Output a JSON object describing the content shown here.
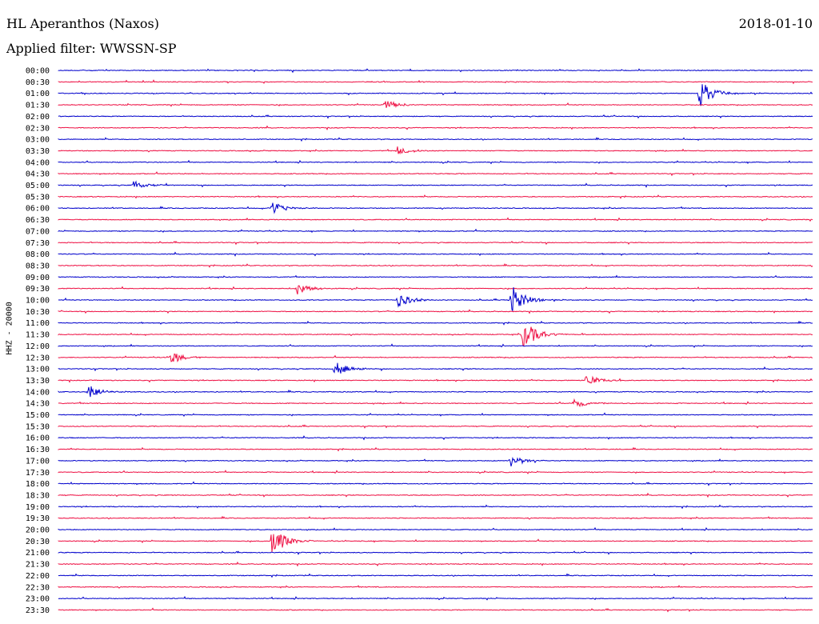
{
  "header": {
    "station": "HL Aperanthos (Naxos)",
    "date": "2018-01-10",
    "filter": "Applied filter: WWSSN-SP",
    "channel": "HHZ - 20000"
  },
  "chart_data": {
    "type": "line",
    "title": "HL Aperanthos (Naxos)",
    "subtitle": "Applied filter: WWSSN-SP",
    "ylabel": "HHZ - 20000",
    "xlabel": "",
    "row_labels": [
      "00:00",
      "00:30",
      "01:00",
      "01:30",
      "02:00",
      "02:30",
      "03:00",
      "03:30",
      "04:00",
      "04:30",
      "05:00",
      "05:30",
      "06:00",
      "06:30",
      "07:00",
      "07:30",
      "08:00",
      "08:30",
      "09:00",
      "09:30",
      "10:00",
      "10:30",
      "11:00",
      "11:30",
      "12:00",
      "12:30",
      "13:00",
      "13:30",
      "14:00",
      "14:30",
      "15:00",
      "15:30",
      "16:00",
      "16:30",
      "17:00",
      "17:30",
      "18:00",
      "18:30",
      "19:00",
      "19:30",
      "20:00",
      "20:30",
      "21:00",
      "21:30",
      "22:00",
      "22:30",
      "23:00",
      "23:30"
    ],
    "colors": [
      "#0000cc",
      "#ee1144"
    ],
    "legend": "none",
    "grid": false,
    "events": [
      {
        "row": "01:00",
        "minute": 25.5,
        "amplitude": 1.0
      },
      {
        "row": "01:30",
        "minute": 13.0,
        "amplitude": 0.3
      },
      {
        "row": "03:30",
        "minute": 13.5,
        "amplitude": 0.3
      },
      {
        "row": "05:00",
        "minute": 3.0,
        "amplitude": 0.3
      },
      {
        "row": "06:00",
        "minute": 8.5,
        "amplitude": 0.4
      },
      {
        "row": "09:30",
        "minute": 9.5,
        "amplitude": 0.4
      },
      {
        "row": "10:00",
        "minute": 13.5,
        "amplitude": 0.5
      },
      {
        "row": "10:00",
        "minute": 18.0,
        "amplitude": 1.0
      },
      {
        "row": "11:30",
        "minute": 18.5,
        "amplitude": 1.0
      },
      {
        "row": "12:30",
        "minute": 4.5,
        "amplitude": 0.4
      },
      {
        "row": "13:00",
        "minute": 11.0,
        "amplitude": 0.5
      },
      {
        "row": "13:30",
        "minute": 21.0,
        "amplitude": 0.4
      },
      {
        "row": "14:00",
        "minute": 1.2,
        "amplitude": 0.5
      },
      {
        "row": "14:30",
        "minute": 20.5,
        "amplitude": 0.3
      },
      {
        "row": "17:00",
        "minute": 18.0,
        "amplitude": 0.4
      },
      {
        "row": "20:30",
        "minute": 8.5,
        "amplitude": 1.0
      }
    ]
  }
}
